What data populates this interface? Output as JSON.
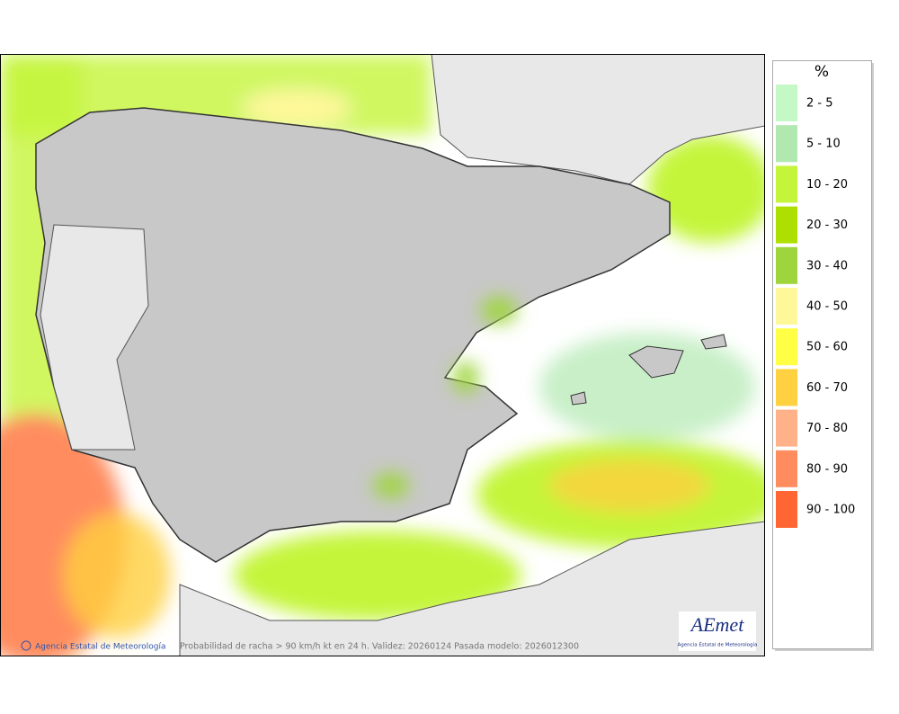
{
  "legend": {
    "title": "%",
    "items": [
      {
        "label": "2 - 5",
        "color": "#c4f8c4"
      },
      {
        "label": "5 - 10",
        "color": "#b0e8b0"
      },
      {
        "label": "10 - 20",
        "color": "#c4f53a"
      },
      {
        "label": "20 - 30",
        "color": "#ade000"
      },
      {
        "label": "30 - 40",
        "color": "#9fd53c"
      },
      {
        "label": "40 - 50",
        "color": "#fff89a"
      },
      {
        "label": "50 - 60",
        "color": "#ffff45"
      },
      {
        "label": "60 - 70",
        "color": "#ffd03f"
      },
      {
        "label": "70 - 80",
        "color": "#ffb28a"
      },
      {
        "label": "80 - 90",
        "color": "#ff8c5e"
      },
      {
        "label": "90 - 100",
        "color": "#ff6633"
      }
    ]
  },
  "footer": {
    "credit": "Agencia Estatal de Meteorología",
    "caption": "Probabilidad de racha > 90 km/h kt en 24 h. Validez: 20260124 Pasada modelo: 2026012300"
  },
  "logo": {
    "name": "AEmet",
    "subtitle": "Agencia Estatal de Meteorología"
  }
}
